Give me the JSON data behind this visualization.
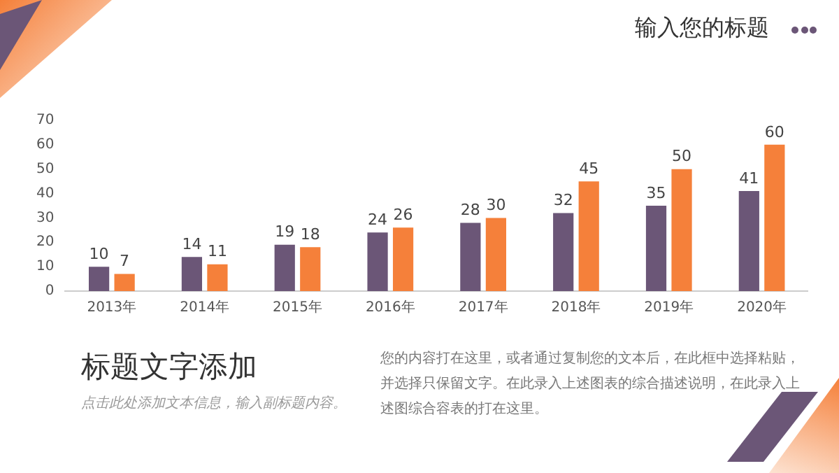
{
  "chart_data": {
    "type": "bar",
    "title": "输入您的标题",
    "subtitle": "标题文字添加",
    "annotations": [
      "点击此处添加文本信息，输入副标题内容。",
      "您的内容打在这里，或者通过复制您的文本后，在此框中选择粘贴，并选择只保留文字。在此录入上述图表的综合描述说明，在此录入上述图综合容表的打在这里。"
    ],
    "categories": [
      "2013年",
      "2014年",
      "2015年",
      "2016年",
      "2017年",
      "2018年",
      "2019年",
      "2020年"
    ],
    "series": [
      {
        "color": "#6b5677",
        "values": [
          10,
          14,
          19,
          24,
          28,
          32,
          35,
          41
        ]
      },
      {
        "color": "#f5803a",
        "values": [
          7,
          11,
          18,
          26,
          30,
          45,
          50,
          60
        ]
      }
    ],
    "ylim": [
      0,
      70
    ],
    "yticks": [
      0,
      10,
      20,
      30,
      40,
      50,
      60,
      70
    ],
    "grid": false,
    "legend": false,
    "data_labels": true
  }
}
